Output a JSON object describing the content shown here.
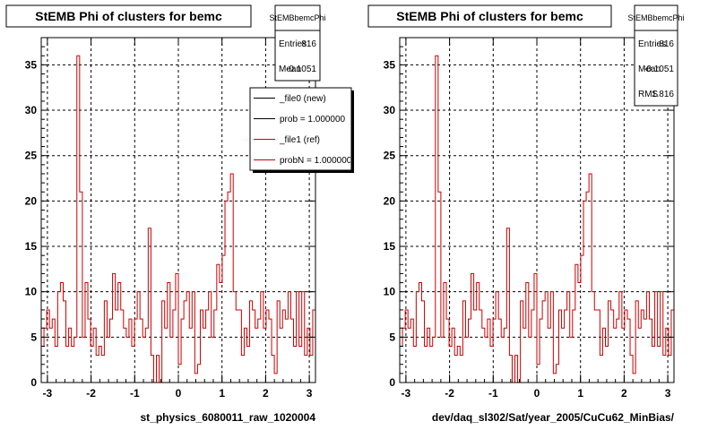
{
  "colors": {
    "background": "#ffffff",
    "ref_line": "#cc0000",
    "new_line": "#000000",
    "grid": "#000000",
    "legend_shadow": "#000000"
  },
  "footer_text": "",
  "chart_data": [
    {
      "type": "line",
      "title": "StEMB Phi of clusters for bemc",
      "xlabel": "st_physics_6080011_raw_1020004",
      "ylabel": "",
      "xlim": [
        -3.1416,
        3.1416
      ],
      "ylim": [
        0,
        38
      ],
      "x_ticks": [
        -3,
        -2,
        -1,
        0,
        1,
        2,
        3
      ],
      "y_ticks": [
        0,
        5,
        10,
        15,
        20,
        25,
        30,
        35
      ],
      "grid": true,
      "stats": {
        "name": "StEMBbemcPhi",
        "rows": [
          {
            "label": "Entries",
            "value": "816"
          },
          {
            "label": "Mean",
            "value": "-0.1051"
          }
        ]
      },
      "legend": {
        "placement": "top-right",
        "entries": [
          {
            "label": "_file0 (new)",
            "color": "#000000"
          },
          {
            "label": "prob = 1.000000",
            "color": "#000000"
          },
          {
            "label": "_file1 (ref)",
            "color": "#cc0000"
          },
          {
            "label": "probN = 1.000000",
            "color": "#cc0000"
          }
        ]
      },
      "bins": 100,
      "series": [
        {
          "name": "_file1 (ref)",
          "values": [
            4,
            6,
            8,
            6,
            7,
            4,
            10,
            11,
            9,
            4,
            6,
            4,
            5,
            36,
            21,
            5,
            11,
            7,
            4,
            6,
            3,
            4,
            3,
            9,
            5,
            7,
            12,
            8,
            11,
            8,
            6,
            5,
            7,
            4,
            7,
            10,
            7,
            5,
            6,
            17,
            3,
            0,
            3,
            0,
            9,
            6,
            11,
            5,
            8,
            12,
            2,
            7,
            9,
            10,
            6,
            10,
            1,
            2,
            8,
            6,
            8,
            10,
            5,
            8,
            13,
            11,
            14,
            20,
            21,
            23,
            10,
            8,
            8,
            3,
            6,
            4,
            9,
            8,
            6,
            7,
            10,
            6,
            8,
            7,
            3,
            1,
            9,
            6,
            8,
            7,
            10,
            7,
            4,
            10,
            4,
            10,
            3,
            6,
            3,
            8
          ]
        }
      ]
    },
    {
      "type": "line",
      "title": "StEMB Phi of clusters for bemc",
      "xlabel": "dev/daq_sl302/Sat/year_2005/CuCu62_MinBias/",
      "ylabel": "",
      "xlim": [
        -3.1416,
        3.1416
      ],
      "ylim": [
        0,
        38
      ],
      "x_ticks": [
        -3,
        -2,
        -1,
        0,
        1,
        2,
        3
      ],
      "y_ticks": [
        0,
        5,
        10,
        15,
        20,
        25,
        30,
        35
      ],
      "grid": true,
      "stats": {
        "name": "StEMBbemcPhi",
        "rows": [
          {
            "label": "Entries",
            "value": "816"
          },
          {
            "label": "Mean",
            "value": "-0.1051"
          },
          {
            "label": "RMS",
            "value": "1.816"
          }
        ]
      },
      "bins": 100,
      "series": [
        {
          "name": "_file1 (ref)",
          "values": [
            4,
            6,
            8,
            6,
            7,
            4,
            10,
            11,
            9,
            4,
            6,
            4,
            5,
            36,
            21,
            5,
            11,
            7,
            4,
            6,
            3,
            4,
            3,
            9,
            5,
            7,
            12,
            8,
            11,
            8,
            6,
            5,
            7,
            4,
            7,
            10,
            7,
            5,
            6,
            17,
            3,
            0,
            3,
            0,
            9,
            6,
            11,
            5,
            8,
            12,
            2,
            7,
            9,
            10,
            6,
            10,
            1,
            2,
            8,
            6,
            8,
            10,
            5,
            8,
            13,
            11,
            14,
            20,
            21,
            23,
            10,
            8,
            8,
            3,
            6,
            4,
            9,
            8,
            6,
            7,
            10,
            6,
            8,
            7,
            3,
            1,
            9,
            6,
            8,
            7,
            10,
            7,
            4,
            10,
            4,
            10,
            3,
            6,
            3,
            8
          ]
        }
      ]
    }
  ]
}
